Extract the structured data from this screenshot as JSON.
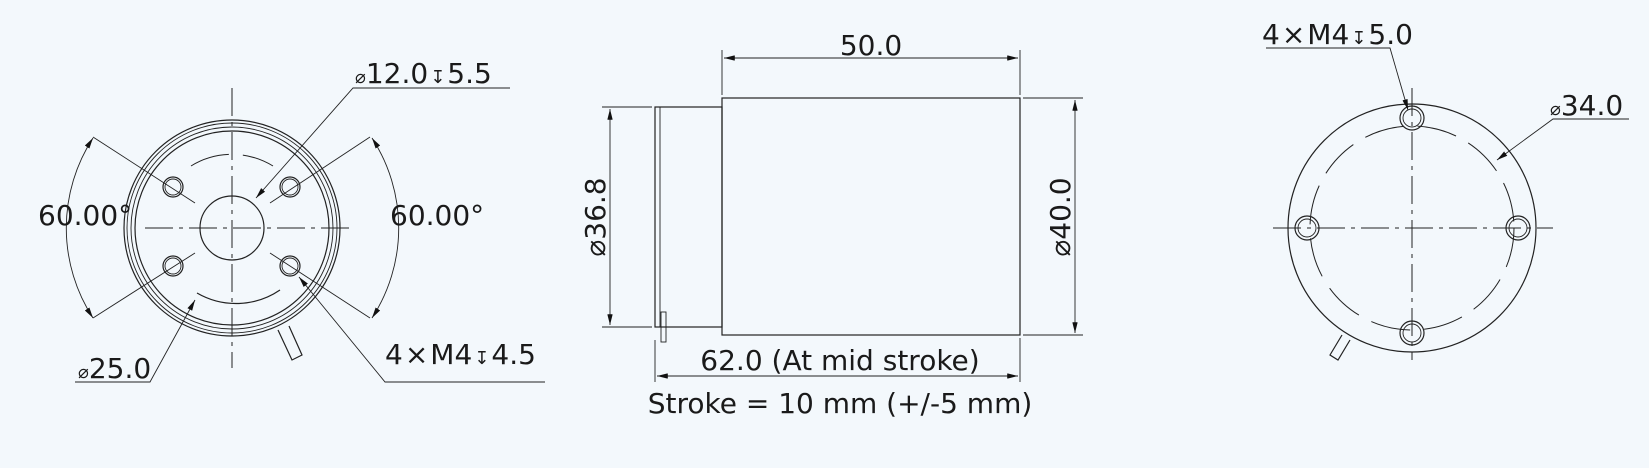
{
  "front_view": {
    "hub_dim": {
      "prefix": "⌀",
      "value": "12.0",
      "depth_symbol": "↧",
      "depth": "5.5"
    },
    "angle_left": "60.00°",
    "angle_right": "60.00°",
    "bolt_circle_dim": {
      "prefix": "⌀",
      "value": "25.0"
    },
    "holes_dim": {
      "count": "4",
      "times": "×",
      "thread": "M4",
      "depth_symbol": "↧",
      "depth": "4.5"
    }
  },
  "side_view": {
    "length_dim": "50.0",
    "nose_dia_dim": "⌀36.8",
    "body_dia_dim": "⌀40.0",
    "overall_length_dim": "62.0 (At mid stroke)",
    "stroke_note": "Stroke = 10 mm (+/-5 mm)"
  },
  "rear_view": {
    "holes_dim": {
      "count": "4",
      "times": "×",
      "thread": "M4",
      "depth_symbol": "↧",
      "depth": "5.0"
    },
    "bolt_circle_dim": {
      "prefix": "⌀",
      "value": "34.0"
    }
  }
}
